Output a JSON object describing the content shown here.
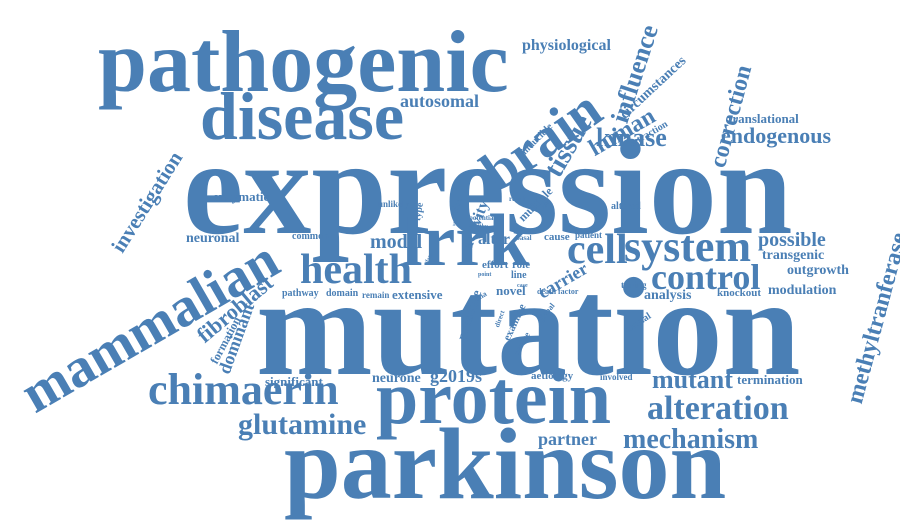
{
  "colors": {
    "word": "#4a7fb5",
    "background": "#ffffff"
  },
  "words": [
    "pathogenic",
    "disease",
    "brain",
    "expression",
    "mutation",
    "parkinson",
    "protein",
    "chimaerin",
    "mammalian",
    "health",
    "lrrk",
    "cell",
    "system",
    "control",
    "alteration",
    "mechanism",
    "mutant",
    "glutamine",
    "investigation",
    "fibroblast",
    "methyltranferase",
    "correction",
    "influence",
    "tissue",
    "human",
    "kinase",
    "endogenous",
    "autosomal",
    "physiological",
    "circumstances",
    "translational",
    "retraction",
    "possible",
    "transgenic",
    "outgrowth",
    "modulation",
    "knockout",
    "analysis",
    "testing",
    "termination",
    "partner",
    "g2019s",
    "neurone",
    "significant",
    "dominant",
    "formation",
    "pathway",
    "domain",
    "remain",
    "extensive",
    "novel",
    "model",
    "neuronal",
    "common",
    "enzymatic",
    "carrier",
    "activity",
    "alter",
    "role",
    "cause",
    "patient",
    "aetiology",
    "involved",
    "axonal",
    "death",
    "factor",
    "presence",
    "examine",
    "direct",
    "mouse",
    "result",
    "altered",
    "global",
    "multiple",
    "unlikely",
    "potential",
    "healthy",
    "basal",
    "effort",
    "point",
    "line",
    "case",
    "vitro",
    "type",
    "inducible",
    "data",
    "rna",
    "via",
    "met"
  ]
}
